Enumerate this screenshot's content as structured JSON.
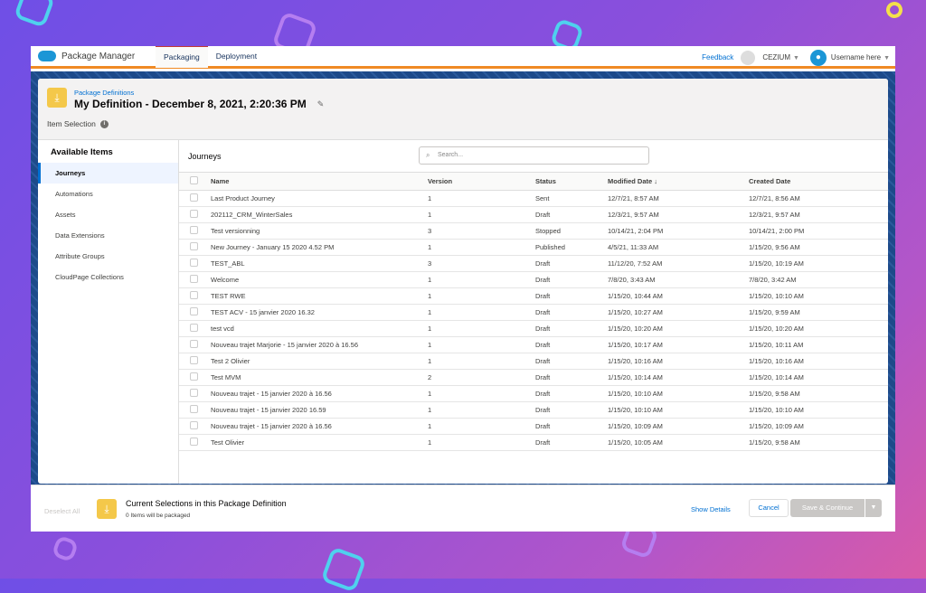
{
  "app": {
    "name": "Package Manager",
    "tabs": [
      {
        "label": "Packaging",
        "active": true
      },
      {
        "label": "Deployment",
        "active": false
      }
    ],
    "feedback": "Feedback",
    "org": "CEZIUM",
    "username": "Username here"
  },
  "header": {
    "breadcrumb": "Package Definitions",
    "title": "My Definition - December 8, 2021, 2:20:36 PM",
    "section": "Item Selection"
  },
  "sidebar": {
    "title": "Available Items",
    "items": [
      {
        "label": "Journeys",
        "active": true
      },
      {
        "label": "Automations"
      },
      {
        "label": "Assets"
      },
      {
        "label": "Data Extensions"
      },
      {
        "label": "Attribute Groups"
      },
      {
        "label": "CloudPage Collections"
      }
    ]
  },
  "main": {
    "title": "Journeys",
    "search_placeholder": "Search...",
    "columns": [
      "Name",
      "Version",
      "Status",
      "Modified Date ↓",
      "Created Date"
    ],
    "rows": [
      [
        "Last Product Journey",
        "1",
        "Sent",
        "12/7/21, 8:57 AM",
        "12/7/21, 8:56 AM"
      ],
      [
        "202112_CRM_WinterSales",
        "1",
        "Draft",
        "12/3/21, 9:57 AM",
        "12/3/21, 9:57 AM"
      ],
      [
        "Test versionning",
        "3",
        "Stopped",
        "10/14/21, 2:04 PM",
        "10/14/21, 2:00 PM"
      ],
      [
        "New Journey - January 15 2020 4.52 PM",
        "1",
        "Published",
        "4/5/21, 11:33 AM",
        "1/15/20, 9:56 AM"
      ],
      [
        "TEST_ABL",
        "3",
        "Draft",
        "11/12/20, 7:52 AM",
        "1/15/20, 10:19 AM"
      ],
      [
        "Welcome",
        "1",
        "Draft",
        "7/8/20, 3:43 AM",
        "7/8/20, 3:42 AM"
      ],
      [
        "TEST RWE",
        "1",
        "Draft",
        "1/15/20, 10:44 AM",
        "1/15/20, 10:10 AM"
      ],
      [
        "TEST ACV - 15 janvier 2020 16.32",
        "1",
        "Draft",
        "1/15/20, 10:27 AM",
        "1/15/20, 9:59 AM"
      ],
      [
        "test vcd",
        "1",
        "Draft",
        "1/15/20, 10:20 AM",
        "1/15/20, 10:20 AM"
      ],
      [
        "Nouveau trajet Marjorie - 15 janvier 2020 à 16.56",
        "1",
        "Draft",
        "1/15/20, 10:17 AM",
        "1/15/20, 10:11 AM"
      ],
      [
        "Test 2 Olivier",
        "1",
        "Draft",
        "1/15/20, 10:16 AM",
        "1/15/20, 10:16 AM"
      ],
      [
        "Test MVM",
        "2",
        "Draft",
        "1/15/20, 10:14 AM",
        "1/15/20, 10:14 AM"
      ],
      [
        "Nouveau trajet - 15 janvier 2020 à 16.56",
        "1",
        "Draft",
        "1/15/20, 10:10 AM",
        "1/15/20, 9:58 AM"
      ],
      [
        "Nouveau trajet - 15 janvier 2020 16.59",
        "1",
        "Draft",
        "1/15/20, 10:10 AM",
        "1/15/20, 10:10 AM"
      ],
      [
        "Nouveau trajet - 15 janvier 2020 à 16.56",
        "1",
        "Draft",
        "1/15/20, 10:09 AM",
        "1/15/20, 10:09 AM"
      ],
      [
        "Test Olivier",
        "1",
        "Draft",
        "1/15/20, 10:05 AM",
        "1/15/20, 9:58 AM"
      ]
    ]
  },
  "footer": {
    "deselect": "Deselect All",
    "title": "Current Selections in this Package Definition",
    "subtitle": "0 Items will be packaged",
    "show_details": "Show Details",
    "cancel": "Cancel",
    "save": "Save & Continue"
  },
  "colors": {
    "accent": "#0070d2",
    "nav_border": "#f08a24",
    "package_icon": "#f4c84a"
  }
}
